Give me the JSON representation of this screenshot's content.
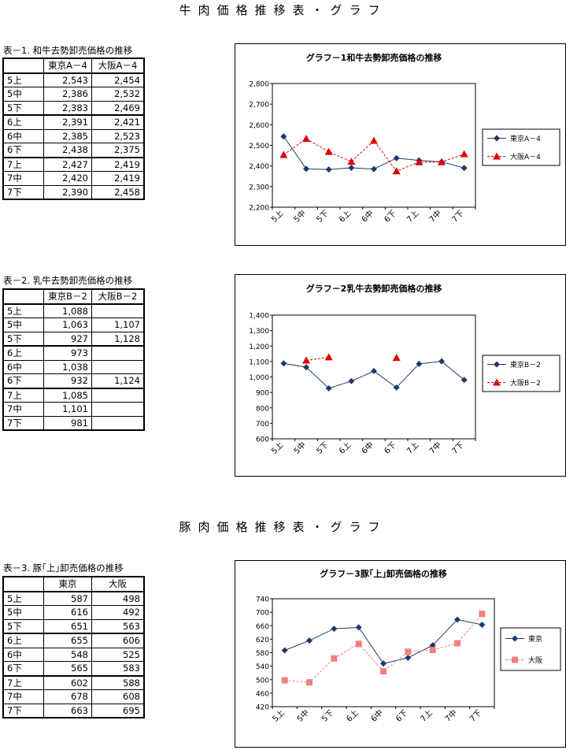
{
  "titles": {
    "beef": "牛肉価格推移表・グラフ",
    "pork": "豚肉価格推移表・グラフ"
  },
  "tables": [
    {
      "caption": "表－1. 和牛去勢卸売価格の推移",
      "headers": [
        "",
        "東京A－4",
        "大阪A－4"
      ],
      "rows": [
        [
          "5上",
          "2,543",
          "2,454"
        ],
        [
          "5中",
          "2,386",
          "2,532"
        ],
        [
          "5下",
          "2,383",
          "2,469"
        ],
        [
          "6上",
          "2,391",
          "2,421"
        ],
        [
          "6中",
          "2,385",
          "2,523"
        ],
        [
          "6下",
          "2,438",
          "2,375"
        ],
        [
          "7上",
          "2,427",
          "2,419"
        ],
        [
          "7中",
          "2,420",
          "2,419"
        ],
        [
          "7下",
          "2,390",
          "2,458"
        ]
      ]
    },
    {
      "caption": "表－2. 乳牛去勢卸売価格の推移",
      "headers": [
        "",
        "東京B－2",
        "大阪B－2"
      ],
      "rows": [
        [
          "5上",
          "1,088",
          ""
        ],
        [
          "5中",
          "1,063",
          "1,107"
        ],
        [
          "5下",
          "927",
          "1,128"
        ],
        [
          "6上",
          "973",
          ""
        ],
        [
          "6中",
          "1,038",
          ""
        ],
        [
          "6下",
          "932",
          "1,124"
        ],
        [
          "7上",
          "1,085",
          ""
        ],
        [
          "7中",
          "1,101",
          ""
        ],
        [
          "7下",
          "981",
          ""
        ]
      ]
    },
    {
      "caption": "表－3. 豚｢上｣卸売価格の推移",
      "headers": [
        "",
        "東京",
        "大阪"
      ],
      "rows": [
        [
          "5上",
          "587",
          "498"
        ],
        [
          "5中",
          "616",
          "492"
        ],
        [
          "5下",
          "651",
          "563"
        ],
        [
          "6上",
          "655",
          "606"
        ],
        [
          "6中",
          "548",
          "525"
        ],
        [
          "6下",
          "565",
          "583"
        ],
        [
          "7上",
          "602",
          "588"
        ],
        [
          "7中",
          "678",
          "608"
        ],
        [
          "7下",
          "663",
          "695"
        ]
      ]
    }
  ],
  "chart_data": [
    {
      "type": "line",
      "title": "グラフ－1和牛去勢卸売価格の推移",
      "categories": [
        "5上",
        "5中",
        "5下",
        "6上",
        "6中",
        "6下",
        "7上",
        "7中",
        "7下"
      ],
      "ylim": [
        2200,
        2800
      ],
      "yticks": [
        "2,200",
        "2,300",
        "2,400",
        "2,500",
        "2,600",
        "2,700",
        "2,800"
      ],
      "legend": "right",
      "series": [
        {
          "name": "東京A－4",
          "values": [
            2543,
            2386,
            2383,
            2391,
            2385,
            2438,
            2427,
            2420,
            2390
          ],
          "color": "#1F3A6A",
          "marker": "diamond",
          "dash": false
        },
        {
          "name": "大阪A－4",
          "values": [
            2454,
            2532,
            2469,
            2421,
            2523,
            2375,
            2419,
            2419,
            2458
          ],
          "color": "#E00000",
          "marker": "triangle",
          "dash": true
        }
      ]
    },
    {
      "type": "line",
      "title": "グラフ－2乳牛去勢卸売価格の推移",
      "categories": [
        "5上",
        "5中",
        "5下",
        "6上",
        "6中",
        "6下",
        "7上",
        "7中",
        "7下"
      ],
      "ylim": [
        600,
        1400
      ],
      "yticks": [
        "600",
        "700",
        "800",
        "900",
        "1,000",
        "1,100",
        "1,200",
        "1,300",
        "1,400"
      ],
      "legend": "right",
      "series": [
        {
          "name": "東京B－2",
          "values": [
            1088,
            1063,
            927,
            973,
            1038,
            932,
            1085,
            1101,
            981
          ],
          "color": "#1F3A6A",
          "marker": "diamond",
          "dash": false
        },
        {
          "name": "大阪B－2",
          "values": [
            null,
            1107,
            1128,
            null,
            null,
            1124,
            null,
            null,
            null
          ],
          "color": "#E00000",
          "marker": "triangle",
          "dash": true
        }
      ]
    },
    {
      "type": "line",
      "title": "グラフ－3豚｢上｣卸売価格の推移",
      "categories": [
        "5上",
        "5中",
        "5下",
        "6上",
        "6中",
        "6下",
        "7上",
        "7中",
        "7下"
      ],
      "ylim": [
        420,
        740
      ],
      "yticks": [
        "420",
        "460",
        "500",
        "540",
        "580",
        "620",
        "660",
        "700",
        "740"
      ],
      "legend": "right",
      "series": [
        {
          "name": "東京",
          "values": [
            587,
            616,
            651,
            655,
            548,
            565,
            602,
            678,
            663
          ],
          "color": "#1F3A6A",
          "marker": "diamond",
          "dash": false
        },
        {
          "name": "大阪",
          "values": [
            498,
            492,
            563,
            606,
            525,
            583,
            588,
            608,
            695
          ],
          "color": "#F08080",
          "marker": "square",
          "dash": true
        }
      ]
    }
  ]
}
